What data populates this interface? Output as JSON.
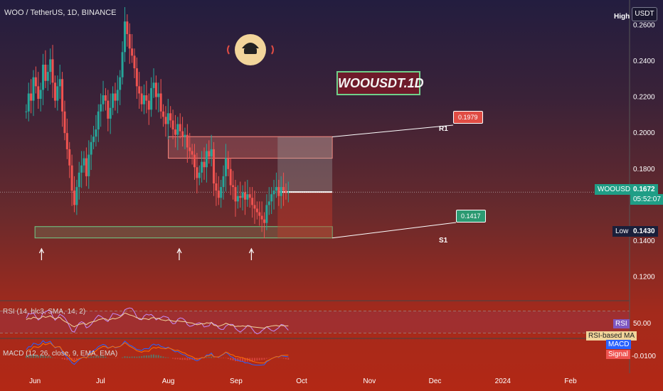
{
  "header": {
    "title": "WOO / TetherUS, 1D, BINANCE",
    "currency": "USDT",
    "high_label": "High",
    "low_label": "Low",
    "low_value": "0.1430"
  },
  "watermark": {
    "text": "WOOUSDT.1D"
  },
  "levels": {
    "r1_label": "R1",
    "s1_label": "S1",
    "r1_value": "0.1979",
    "s1_value": "0.1417"
  },
  "current": {
    "symbol": "WOOUSDT",
    "price": "0.1672",
    "countdown": "05:52:07"
  },
  "indicators": {
    "rsi_label": "RSI (14, hlc3, SMA, 14, 2)",
    "rsi_tag": "RSI",
    "rsi_ma_tag": "RSI-based MA",
    "rsi_level": "50.00",
    "macd_label": "MACD (12, 26, close, 9, EMA, EMA)",
    "macd_tag": "MACD",
    "signal_tag": "Signal",
    "macd_level": "-0.0100"
  },
  "colors": {
    "up": "#26a69a",
    "down": "#ef5350",
    "support_zone": "#6fd08a",
    "resistance_zone": "#ff8a80",
    "rsi_line": "#c58af9",
    "rsi_ma": "#f2d59b",
    "macd_line": "#2962ff",
    "signal_line": "#ff6d00"
  },
  "chart_data": {
    "type": "candlestick",
    "title": "WOO / TetherUS, 1D, BINANCE",
    "y_ticks": [
      "0.2600",
      "0.2400",
      "0.2200",
      "0.2000",
      "0.1800",
      "0.1400",
      "0.1200"
    ],
    "x_ticks": [
      "Jun",
      "Jul",
      "Aug",
      "Sep",
      "Oct",
      "Nov",
      "Dec",
      "2024",
      "Feb"
    ],
    "ylim": [
      0.108,
      0.27
    ],
    "grid": false,
    "start_date": "2023-05-16",
    "end_date": "2024-02-28",
    "close_series": [
      0.212,
      0.222,
      0.218,
      0.231,
      0.226,
      0.219,
      0.224,
      0.238,
      0.229,
      0.234,
      0.241,
      0.228,
      0.218,
      0.226,
      0.23,
      0.212,
      0.2,
      0.191,
      0.182,
      0.168,
      0.16,
      0.17,
      0.178,
      0.182,
      0.186,
      0.176,
      0.188,
      0.195,
      0.198,
      0.202,
      0.212,
      0.216,
      0.221,
      0.218,
      0.208,
      0.214,
      0.222,
      0.218,
      0.224,
      0.231,
      0.245,
      0.262,
      0.255,
      0.247,
      0.243,
      0.236,
      0.226,
      0.222,
      0.216,
      0.221,
      0.218,
      0.213,
      0.225,
      0.228,
      0.22,
      0.222,
      0.212,
      0.209,
      0.205,
      0.211,
      0.207,
      0.202,
      0.199,
      0.205,
      0.201,
      0.198,
      0.199,
      0.192,
      0.19,
      0.188,
      0.181,
      0.175,
      0.178,
      0.184,
      0.181,
      0.19,
      0.187,
      0.191,
      0.172,
      0.168,
      0.164,
      0.17,
      0.176,
      0.186,
      0.18,
      0.171,
      0.17,
      0.162,
      0.165,
      0.164,
      0.167,
      0.163,
      0.166,
      0.164,
      0.16,
      0.158,
      0.156,
      0.154,
      0.152,
      0.15,
      0.16,
      0.162,
      0.166,
      0.168,
      0.17,
      0.165,
      0.17,
      0.168,
      0.167,
      0.167
    ],
    "annotations": {
      "resistance_zone": [
        0.186,
        0.198
      ],
      "support_zone": [
        0.1417,
        0.148
      ],
      "r1": 0.1979,
      "s1": 0.1417,
      "current_price": 0.1672,
      "low": 0.143,
      "zone_start": "2023-08-01",
      "zone_end": "2023-10-15",
      "projection_start": "2023-09-20"
    },
    "rsi_axis": {
      "level": 50,
      "range": [
        20,
        80
      ]
    },
    "macd_axis": {
      "level": -0.01,
      "range": [
        -0.035,
        0.02
      ]
    }
  }
}
